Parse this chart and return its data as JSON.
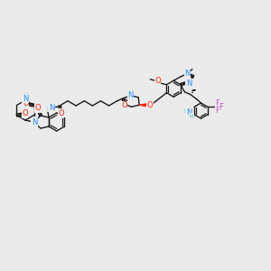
{
  "bg_color": "#ebebeb",
  "bond_color": "#1a1a1a",
  "atom_colors": {
    "N": "#1e90ff",
    "O": "#ff2200",
    "H": "#5bbfbf",
    "F": "#cc44cc",
    "C": "#1a1a1a"
  },
  "fs": 6.0,
  "fss": 4.8,
  "lw": 1.0
}
